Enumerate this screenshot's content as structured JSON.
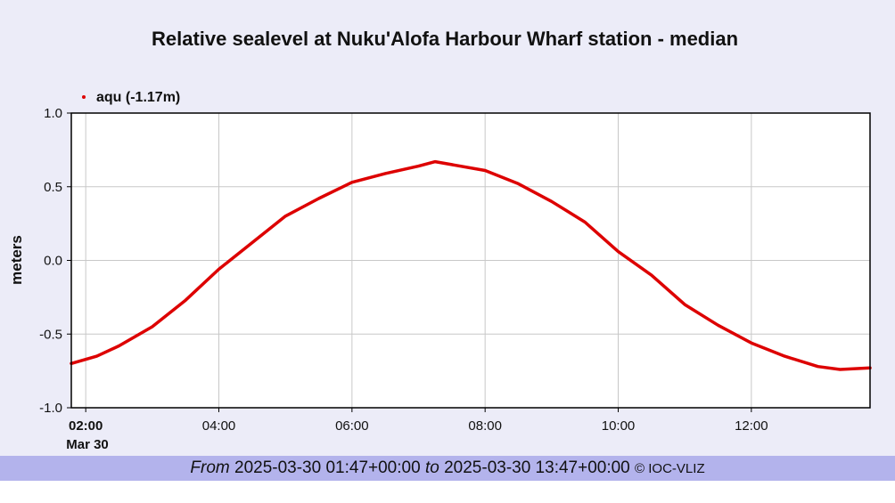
{
  "chart_data": {
    "type": "line",
    "title": "Relative sealevel at Nuku'Alofa Harbour Wharf station - median",
    "ylabel": "meters",
    "xlabel": "",
    "ylim": [
      -1.0,
      1.0
    ],
    "xlim": [
      "2025-03-30T01:47",
      "2025-03-30T13:47"
    ],
    "yticks": [
      "1.0",
      "0.5",
      "0.0",
      "-0.5",
      "-1.0"
    ],
    "ytick_values": [
      1.0,
      0.5,
      0.0,
      -0.5,
      -1.0
    ],
    "xticks": [
      "02:00",
      "04:00",
      "06:00",
      "08:00",
      "10:00",
      "12:00"
    ],
    "xtick_times": [
      "2025-03-30T02:00",
      "2025-03-30T04:00",
      "2025-03-30T06:00",
      "2025-03-30T08:00",
      "2025-03-30T10:00",
      "2025-03-30T12:00"
    ],
    "date_label": "Mar 30",
    "grid": true,
    "legend_position": "top-left",
    "series": [
      {
        "name": "aqu (-1.17m)",
        "color": "#dd0000",
        "x": [
          "2025-03-30T01:47",
          "2025-03-30T02:10",
          "2025-03-30T02:30",
          "2025-03-30T03:00",
          "2025-03-30T03:30",
          "2025-03-30T04:00",
          "2025-03-30T04:30",
          "2025-03-30T05:00",
          "2025-03-30T05:30",
          "2025-03-30T06:00",
          "2025-03-30T06:30",
          "2025-03-30T07:00",
          "2025-03-30T07:15",
          "2025-03-30T07:30",
          "2025-03-30T08:00",
          "2025-03-30T08:30",
          "2025-03-30T09:00",
          "2025-03-30T09:30",
          "2025-03-30T10:00",
          "2025-03-30T10:30",
          "2025-03-30T11:00",
          "2025-03-30T11:30",
          "2025-03-30T12:00",
          "2025-03-30T12:30",
          "2025-03-30T13:00",
          "2025-03-30T13:20",
          "2025-03-30T13:47"
        ],
        "y": [
          -0.7,
          -0.65,
          -0.58,
          -0.45,
          -0.27,
          -0.06,
          0.12,
          0.3,
          0.42,
          0.53,
          0.59,
          0.64,
          0.67,
          0.65,
          0.61,
          0.52,
          0.4,
          0.26,
          0.06,
          -0.1,
          -0.3,
          -0.44,
          -0.56,
          -0.65,
          -0.72,
          -0.74,
          -0.73
        ]
      }
    ]
  },
  "footer": {
    "from_word": "From",
    "start": "2025-03-30 01:47+00:00",
    "to_word": "to",
    "end": "2025-03-30 13:47+00:00",
    "credit": "© IOC-VLIZ"
  }
}
